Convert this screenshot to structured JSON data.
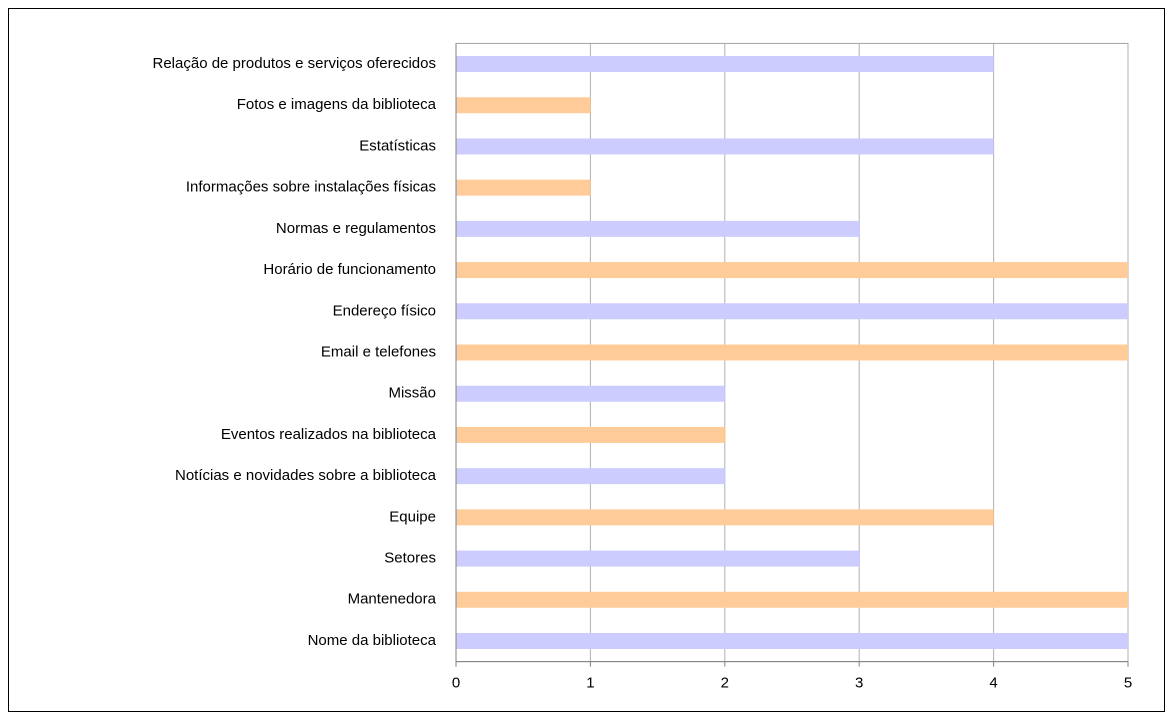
{
  "chart_data": {
    "type": "barh",
    "categories": [
      "Nome da biblioteca",
      "Mantenedora",
      "Setores",
      "Equipe",
      "Notícias e novidades sobre a biblioteca",
      "Eventos realizados na biblioteca",
      "Missão",
      "Email e telefones",
      "Endereço físico",
      "Horário de funcionamento",
      "Normas e regulamentos",
      "Informações sobre instalações físicas",
      "Estatísticas",
      "Fotos e imagens da biblioteca",
      "Relação de produtos e serviços oferecidos"
    ],
    "values": [
      5,
      5,
      3,
      4,
      2,
      2,
      2,
      5,
      5,
      5,
      3,
      1,
      4,
      1,
      4
    ],
    "colors": [
      "#ccccff",
      "#ffcc99",
      "#ccccff",
      "#ffcc99",
      "#ccccff",
      "#ffcc99",
      "#ccccff",
      "#ffcc99",
      "#ccccff",
      "#ffcc99",
      "#ccccff",
      "#ffcc99",
      "#ccccff",
      "#ffcc99",
      "#ccccff"
    ],
    "xlim": [
      0,
      5
    ],
    "xticks": [
      0,
      1,
      2,
      3,
      4,
      5
    ],
    "grid": true
  }
}
